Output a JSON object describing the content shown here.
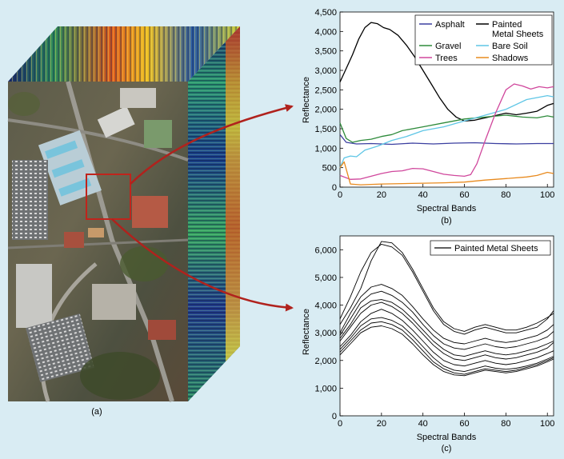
{
  "panels": {
    "a": {
      "caption": "(a)"
    },
    "b": {
      "caption": "(b)"
    },
    "c": {
      "caption": "(c)"
    }
  },
  "colors": {
    "background": "#d9ecf3",
    "arrow": "#b0221d",
    "Asphalt": "#3b3fa0",
    "Painted Metal Sheets": "#000000",
    "Gravel": "#2e8b3b",
    "Bare Soil": "#5fc6e6",
    "Trees": "#d0479c",
    "Shadows": "#e88a1e"
  },
  "chart_data": [
    {
      "type": "line",
      "panel": "b",
      "xlabel": "Spectral Bands",
      "ylabel": "Reflectance",
      "xlim": [
        0,
        103
      ],
      "ylim": [
        0,
        4500
      ],
      "xticks": [
        0,
        20,
        40,
        60,
        80,
        100
      ],
      "yticks": [
        0,
        500,
        1000,
        1500,
        2000,
        2500,
        3000,
        3500,
        4000,
        4500
      ],
      "ytick_labels": [
        "0",
        "500",
        "1,000",
        "1,500",
        "2,000",
        "2,500",
        "3,000",
        "3,500",
        "4,000",
        "4,500"
      ],
      "legend_position": "top-right",
      "legend_columns": 2,
      "series": [
        {
          "name": "Asphalt",
          "x": [
            0,
            3,
            8,
            15,
            25,
            35,
            45,
            55,
            65,
            75,
            85,
            95,
            103
          ],
          "y": [
            1350,
            1150,
            1110,
            1120,
            1100,
            1130,
            1110,
            1130,
            1140,
            1120,
            1110,
            1120,
            1120
          ]
        },
        {
          "name": "Painted Metal Sheets",
          "x": [
            0,
            3,
            6,
            9,
            12,
            15,
            18,
            21,
            24,
            28,
            32,
            36,
            40,
            44,
            48,
            52,
            56,
            60,
            65,
            70,
            75,
            80,
            85,
            90,
            95,
            100,
            103
          ],
          "y": [
            2700,
            3050,
            3400,
            3800,
            4100,
            4230,
            4200,
            4100,
            4050,
            3900,
            3650,
            3350,
            3000,
            2650,
            2300,
            2000,
            1800,
            1700,
            1720,
            1780,
            1840,
            1900,
            1860,
            1900,
            1950,
            2100,
            2150
          ]
        },
        {
          "name": "Gravel",
          "x": [
            0,
            3,
            6,
            10,
            15,
            20,
            25,
            30,
            40,
            50,
            60,
            70,
            80,
            88,
            95,
            100,
            103
          ],
          "y": [
            1650,
            1250,
            1150,
            1200,
            1230,
            1300,
            1350,
            1450,
            1550,
            1650,
            1750,
            1800,
            1850,
            1800,
            1780,
            1830,
            1800
          ]
        },
        {
          "name": "Bare Soil",
          "x": [
            0,
            2,
            5,
            8,
            12,
            18,
            25,
            32,
            40,
            50,
            60,
            70,
            80,
            90,
            100,
            103
          ],
          "y": [
            500,
            750,
            800,
            780,
            950,
            1050,
            1200,
            1300,
            1450,
            1550,
            1700,
            1850,
            2000,
            2250,
            2350,
            2320
          ]
        },
        {
          "name": "Trees",
          "x": [
            0,
            5,
            10,
            15,
            20,
            25,
            30,
            35,
            40,
            45,
            50,
            55,
            60,
            63,
            66,
            70,
            75,
            80,
            84,
            88,
            92,
            96,
            100,
            103
          ],
          "y": [
            300,
            200,
            210,
            280,
            350,
            400,
            420,
            480,
            470,
            400,
            330,
            300,
            280,
            320,
            600,
            1200,
            1900,
            2500,
            2650,
            2600,
            2520,
            2580,
            2550,
            2580
          ]
        },
        {
          "name": "Shadows",
          "x": [
            0,
            2,
            5,
            10,
            20,
            30,
            40,
            50,
            60,
            70,
            80,
            90,
            95,
            100,
            103
          ],
          "y": [
            500,
            650,
            80,
            60,
            80,
            90,
            100,
            110,
            130,
            180,
            220,
            260,
            300,
            380,
            350
          ]
        }
      ]
    },
    {
      "type": "line",
      "panel": "c",
      "xlabel": "Spectral Bands",
      "ylabel": "Reflectance",
      "xlim": [
        0,
        103
      ],
      "ylim": [
        0,
        6500
      ],
      "xticks": [
        0,
        20,
        40,
        60,
        80,
        100
      ],
      "yticks": [
        0,
        1000,
        2000,
        3000,
        4000,
        5000,
        6000
      ],
      "ytick_labels": [
        "0",
        "1,000",
        "2,000",
        "3,000",
        "4,000",
        "5,000",
        "6,000"
      ],
      "legend_position": "top-right",
      "series": [
        {
          "name": "Painted Metal Sheets",
          "x": [
            0,
            5,
            10,
            15,
            20,
            25,
            30,
            35,
            40,
            45,
            50,
            55,
            60,
            65,
            70,
            75,
            80,
            85,
            90,
            95,
            100,
            103
          ],
          "y": [
            3500,
            4300,
            5200,
            5900,
            6200,
            6100,
            5800,
            5200,
            4500,
            3800,
            3300,
            3050,
            2950,
            3100,
            3200,
            3100,
            3000,
            3000,
            3100,
            3200,
            3500,
            3800
          ]
        },
        {
          "name": "",
          "x": [
            0,
            5,
            10,
            15,
            20,
            25,
            30,
            35,
            40,
            45,
            50,
            55,
            60,
            65,
            70,
            75,
            80,
            85,
            90,
            95,
            100,
            103
          ],
          "y": [
            3300,
            3900,
            4600,
            5600,
            6300,
            6250,
            5900,
            5300,
            4600,
            3900,
            3400,
            3150,
            3050,
            3200,
            3300,
            3200,
            3100,
            3100,
            3200,
            3350,
            3550,
            3700
          ]
        },
        {
          "name": "",
          "x": [
            0,
            5,
            10,
            15,
            20,
            25,
            30,
            35,
            40,
            45,
            50,
            55,
            60,
            65,
            70,
            75,
            80,
            85,
            90,
            95,
            100,
            103
          ],
          "y": [
            3000,
            3700,
            4300,
            4650,
            4750,
            4600,
            4350,
            3950,
            3500,
            3100,
            2800,
            2650,
            2600,
            2700,
            2800,
            2700,
            2650,
            2700,
            2800,
            2900,
            3100,
            3300
          ]
        },
        {
          "name": "",
          "x": [
            0,
            5,
            10,
            15,
            20,
            25,
            30,
            35,
            40,
            45,
            50,
            55,
            60,
            65,
            70,
            75,
            80,
            85,
            90,
            95,
            100,
            103
          ],
          "y": [
            2900,
            3500,
            4100,
            4400,
            4500,
            4350,
            4100,
            3750,
            3300,
            2900,
            2600,
            2450,
            2400,
            2500,
            2600,
            2500,
            2450,
            2500,
            2600,
            2700,
            2850,
            3050
          ]
        },
        {
          "name": "",
          "x": [
            0,
            5,
            10,
            15,
            20,
            25,
            30,
            35,
            40,
            45,
            50,
            55,
            60,
            65,
            70,
            75,
            80,
            85,
            90,
            95,
            100,
            103
          ],
          "y": [
            2800,
            3300,
            3900,
            4150,
            4200,
            4100,
            3850,
            3500,
            3100,
            2700,
            2400,
            2200,
            2150,
            2250,
            2350,
            2250,
            2200,
            2250,
            2350,
            2450,
            2600,
            2700
          ]
        },
        {
          "name": "",
          "x": [
            0,
            5,
            10,
            15,
            20,
            25,
            30,
            35,
            40,
            45,
            50,
            55,
            60,
            65,
            70,
            75,
            80,
            85,
            90,
            95,
            100,
            103
          ],
          "y": [
            2700,
            3200,
            3700,
            4000,
            4100,
            3950,
            3700,
            3350,
            2950,
            2550,
            2250,
            2050,
            2000,
            2100,
            2200,
            2100,
            2050,
            2100,
            2200,
            2300,
            2450,
            2650
          ]
        },
        {
          "name": "",
          "x": [
            0,
            5,
            10,
            15,
            20,
            25,
            30,
            35,
            40,
            45,
            50,
            55,
            60,
            65,
            70,
            75,
            80,
            85,
            90,
            95,
            100,
            103
          ],
          "y": [
            2500,
            2900,
            3400,
            3700,
            3850,
            3700,
            3450,
            3100,
            2700,
            2300,
            2000,
            1850,
            1800,
            1900,
            2000,
            1900,
            1850,
            1900,
            2000,
            2100,
            2250,
            2350
          ]
        },
        {
          "name": "",
          "x": [
            0,
            5,
            10,
            15,
            20,
            25,
            30,
            35,
            40,
            45,
            50,
            55,
            60,
            65,
            70,
            75,
            80,
            85,
            90,
            95,
            100,
            103
          ],
          "y": [
            2400,
            2800,
            3250,
            3500,
            3550,
            3450,
            3250,
            2900,
            2500,
            2100,
            1800,
            1650,
            1600,
            1700,
            1800,
            1720,
            1680,
            1720,
            1800,
            1900,
            2050,
            2150
          ]
        },
        {
          "name": "",
          "x": [
            0,
            5,
            10,
            15,
            20,
            25,
            30,
            35,
            40,
            45,
            50,
            55,
            60,
            65,
            70,
            75,
            80,
            85,
            90,
            95,
            100,
            103
          ],
          "y": [
            2300,
            2700,
            3100,
            3350,
            3400,
            3300,
            3100,
            2750,
            2350,
            1950,
            1700,
            1550,
            1500,
            1600,
            1700,
            1650,
            1600,
            1650,
            1750,
            1850,
            2000,
            2100
          ]
        },
        {
          "name": "",
          "x": [
            0,
            5,
            10,
            15,
            20,
            25,
            30,
            35,
            40,
            45,
            50,
            55,
            60,
            65,
            70,
            75,
            80,
            85,
            90,
            95,
            100,
            103
          ],
          "y": [
            2200,
            2600,
            3000,
            3200,
            3250,
            3150,
            2950,
            2600,
            2200,
            1850,
            1600,
            1480,
            1450,
            1550,
            1650,
            1600,
            1550,
            1600,
            1700,
            1800,
            1950,
            2050
          ]
        }
      ]
    }
  ]
}
